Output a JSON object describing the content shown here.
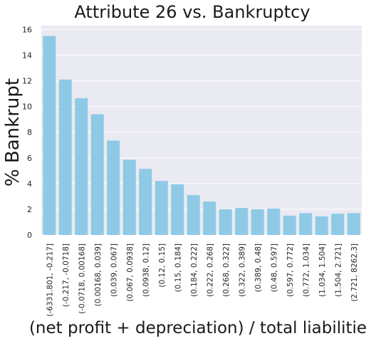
{
  "chart_data": {
    "type": "bar",
    "title": "Attribute 26 vs. Bankruptcy",
    "xlabel": "(net profit + depreciation) / total liabilities",
    "ylabel": "% Bankrupt",
    "categories": [
      "(-6331.801, -0.217]",
      "(-0.217, -0.0718]",
      "(-0.0718, 0.00168]",
      "(0.00168, 0.039]",
      "(0.039, 0.067]",
      "(0.067, 0.0938]",
      "(0.0938, 0.12]",
      "(0.12, 0.15]",
      "(0.15, 0.184]",
      "(0.184, 0.222]",
      "(0.222, 0.268]",
      "(0.268, 0.322]",
      "(0.322, 0.389]",
      "(0.389, 0.48]",
      "(0.48, 0.597]",
      "(0.597, 0.772]",
      "(0.772, 1.034]",
      "(1.034, 1.504]",
      "(1.504, 2.721]",
      "(2.721, 8262.3]"
    ],
    "values": [
      15.5,
      12.1,
      10.65,
      9.4,
      7.35,
      5.85,
      5.15,
      4.2,
      3.95,
      3.1,
      2.6,
      2.0,
      2.1,
      2.0,
      2.05,
      1.5,
      1.7,
      1.45,
      1.65,
      1.7
    ],
    "yticks": [
      0,
      2,
      4,
      6,
      8,
      10,
      12,
      14,
      16
    ],
    "ylim": [
      0,
      16.3
    ],
    "grid": true,
    "colors": {
      "bar": "#8ecae6",
      "plot_background": "#eaeaf2",
      "grid": "#ffffff"
    }
  }
}
